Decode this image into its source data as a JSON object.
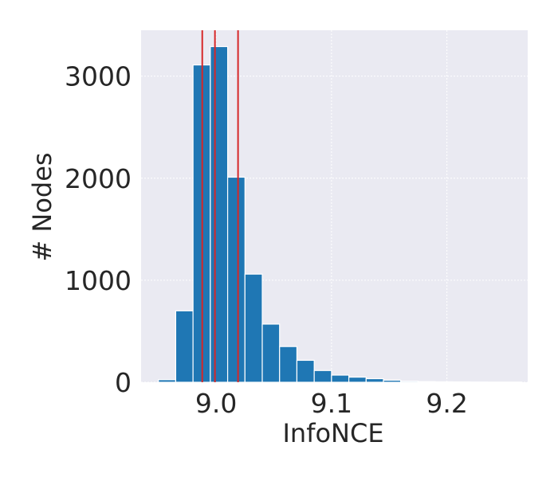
{
  "chart_data": {
    "type": "bar",
    "title": "",
    "xlabel": "InfoNCE",
    "ylabel": "# Nodes",
    "x_ticks": [
      {
        "value": 9.0,
        "label": "9.0"
      },
      {
        "value": 9.1,
        "label": "9.1"
      },
      {
        "value": 9.2,
        "label": "9.2"
      }
    ],
    "y_ticks": [
      {
        "value": 0,
        "label": "0"
      },
      {
        "value": 1000,
        "label": "1000"
      },
      {
        "value": 2000,
        "label": "2000"
      },
      {
        "value": 3000,
        "label": "3000"
      }
    ],
    "xlim": [
      8.935,
      9.27
    ],
    "ylim": [
      0,
      3450
    ],
    "bins": [
      {
        "x0": 8.95,
        "x1": 8.965,
        "count": 25
      },
      {
        "x0": 8.965,
        "x1": 8.98,
        "count": 700
      },
      {
        "x0": 8.98,
        "x1": 8.995,
        "count": 3110
      },
      {
        "x0": 8.995,
        "x1": 9.01,
        "count": 3290
      },
      {
        "x0": 9.01,
        "x1": 9.025,
        "count": 2010
      },
      {
        "x0": 9.025,
        "x1": 9.04,
        "count": 1060
      },
      {
        "x0": 9.04,
        "x1": 9.055,
        "count": 570
      },
      {
        "x0": 9.055,
        "x1": 9.07,
        "count": 350
      },
      {
        "x0": 9.07,
        "x1": 9.085,
        "count": 215
      },
      {
        "x0": 9.085,
        "x1": 9.1,
        "count": 115
      },
      {
        "x0": 9.1,
        "x1": 9.115,
        "count": 70
      },
      {
        "x0": 9.115,
        "x1": 9.13,
        "count": 50
      },
      {
        "x0": 9.13,
        "x1": 9.145,
        "count": 35
      },
      {
        "x0": 9.145,
        "x1": 9.16,
        "count": 20
      },
      {
        "x0": 9.16,
        "x1": 9.175,
        "count": 10
      },
      {
        "x0": 9.175,
        "x1": 9.19,
        "count": 6
      },
      {
        "x0": 9.19,
        "x1": 9.205,
        "count": 4
      },
      {
        "x0": 9.205,
        "x1": 9.22,
        "count": 3
      },
      {
        "x0": 9.22,
        "x1": 9.235,
        "count": 2
      },
      {
        "x0": 9.235,
        "x1": 9.25,
        "count": 1
      },
      {
        "x0": 9.25,
        "x1": 9.265,
        "count": 1
      }
    ],
    "vlines": [
      8.988,
      8.999,
      9.019
    ],
    "grid": true,
    "colors": {
      "bar": "#1f77b4",
      "bar_edge": "#ffffff",
      "vline": "#d62728",
      "plot_bg": "#eaeaf2",
      "grid": "#ffffff",
      "text": "#262626"
    }
  }
}
